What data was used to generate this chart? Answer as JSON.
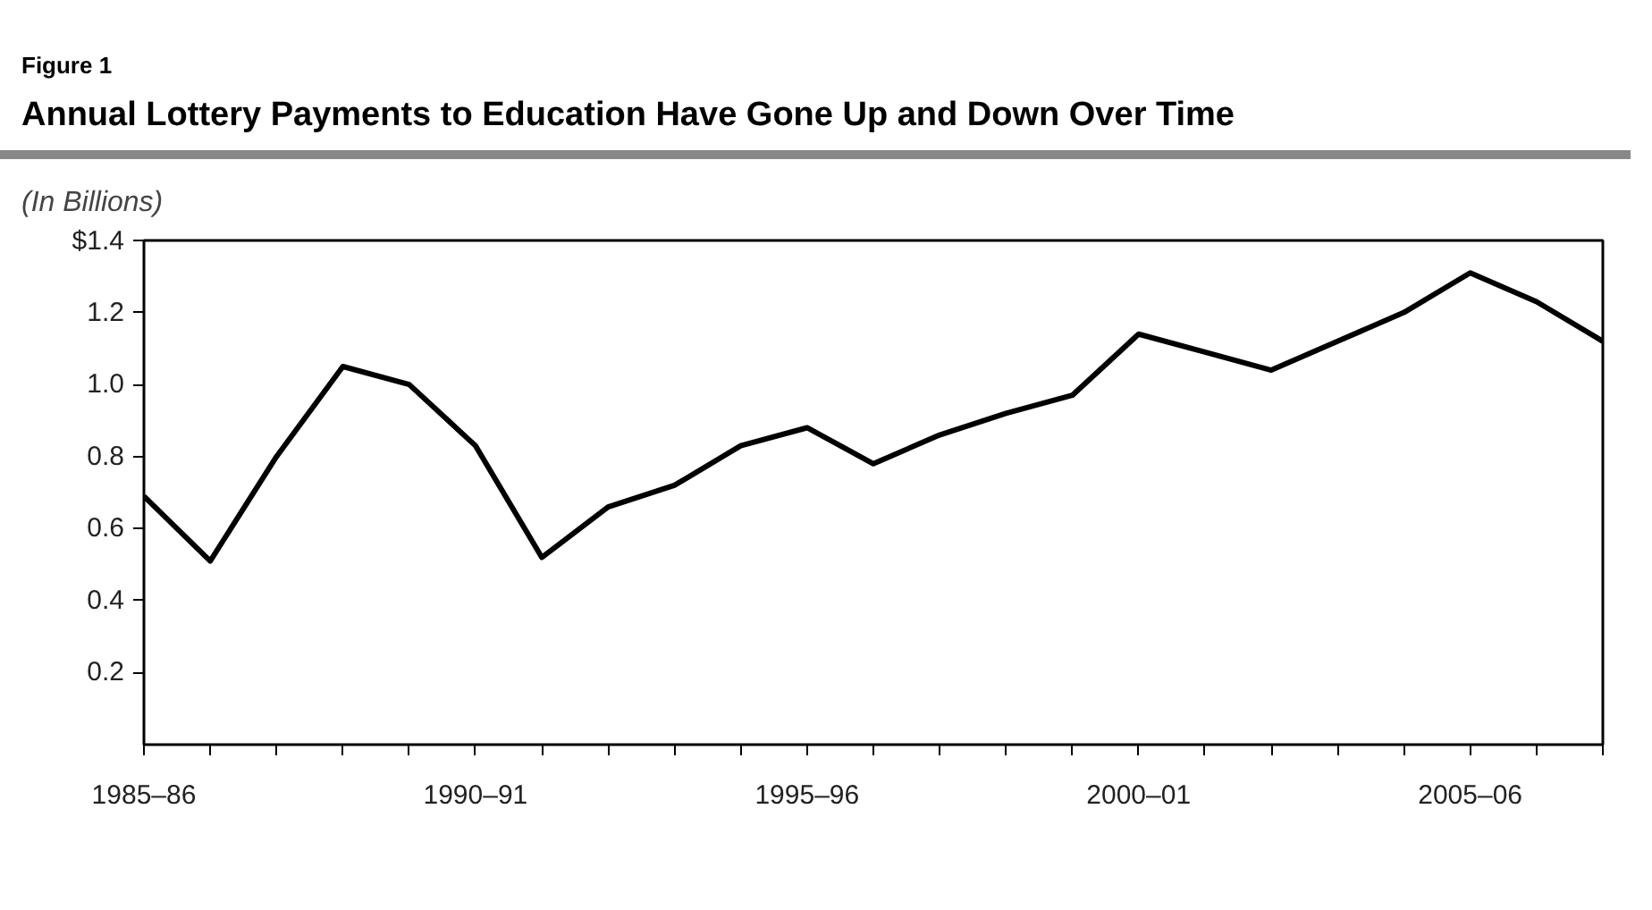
{
  "chart_data": {
    "type": "line",
    "title": "Annual Lottery Payments to Education Have Gone Up and Down Over Time",
    "subtitle": "(In Billions)",
    "annotations": [
      "Figure 1"
    ],
    "categories": [
      "1985–86",
      null,
      null,
      null,
      null,
      "1990–91",
      null,
      null,
      null,
      null,
      "1995–96",
      null,
      null,
      null,
      null,
      "2000–01",
      null,
      null,
      null,
      null,
      "2005–06",
      null,
      null
    ],
    "values": [
      0.69,
      0.51,
      0.8,
      1.05,
      1.0,
      0.83,
      0.52,
      0.66,
      0.72,
      0.83,
      0.88,
      0.78,
      0.86,
      0.92,
      0.97,
      1.14,
      1.09,
      1.04,
      1.12,
      1.2,
      1.31,
      1.23,
      1.12
    ],
    "color": "#000000",
    "ylim": [
      0,
      1.4
    ],
    "yticks": [
      {
        "value": 0.2,
        "label": "0.2"
      },
      {
        "value": 0.4,
        "label": "0.4"
      },
      {
        "value": 0.6,
        "label": "0.6"
      },
      {
        "value": 0.8,
        "label": "0.8"
      },
      {
        "value": 1.0,
        "label": "1.0"
      },
      {
        "value": 1.2,
        "label": "1.2"
      },
      {
        "value": 1.4,
        "label": "$1.4"
      }
    ]
  }
}
